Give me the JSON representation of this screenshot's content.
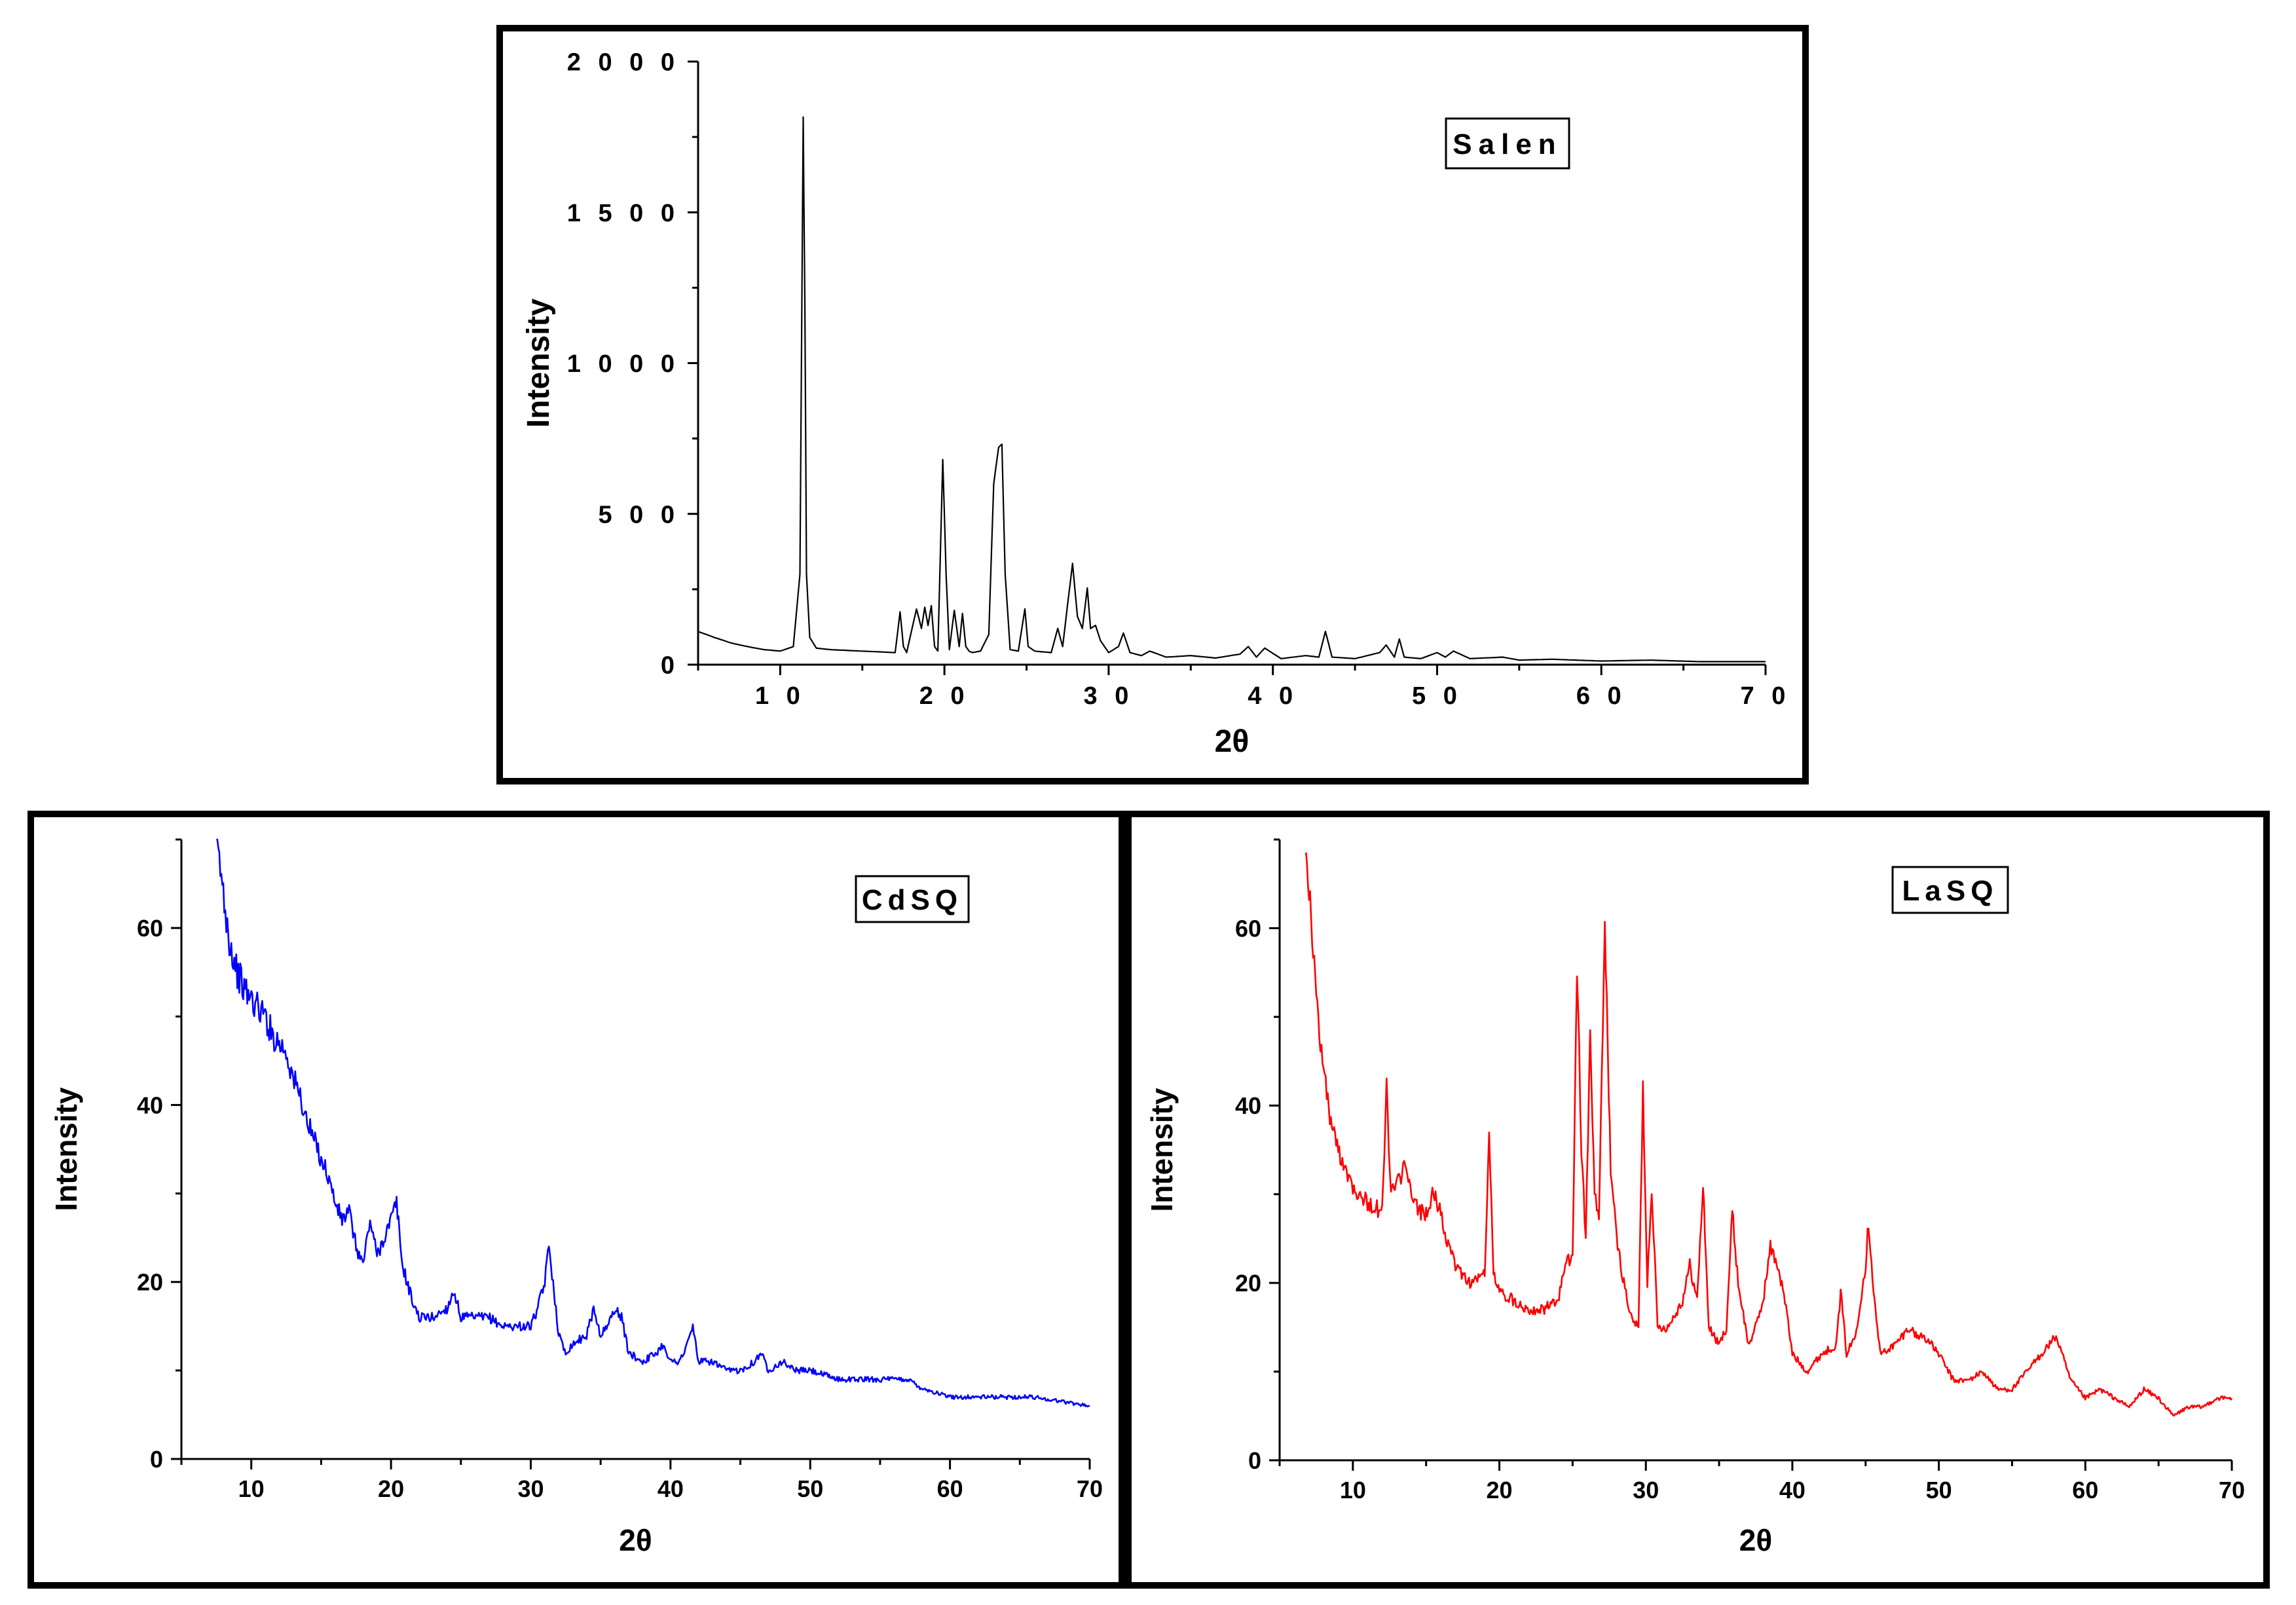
{
  "chart_data": [
    {
      "id": "salen",
      "type": "line",
      "title": "Salen",
      "legend": "Salen",
      "xlabel": "2θ",
      "ylabel": "Intensity",
      "xlim": [
        5,
        70
      ],
      "ylim": [
        0,
        2000
      ],
      "xticks": [
        10,
        20,
        30,
        40,
        50,
        60,
        70
      ],
      "yticks": [
        0,
        500,
        1000,
        1500,
        2000
      ],
      "xticklabels": [
        "1 0",
        "2 0",
        "3 0",
        "4 0",
        "5 0",
        "6 0",
        "7 0"
      ],
      "yticklabels": [
        "0",
        "5 0 0",
        "1 0 0 0",
        "1 5 0 0",
        "2 0 0 0"
      ],
      "color": "#000000",
      "series": [
        {
          "name": "Salen",
          "x": [
            5,
            6,
            7,
            8,
            9,
            10,
            10.8,
            11.2,
            11.4,
            11.5,
            11.6,
            11.8,
            12.2,
            13,
            15,
            17,
            17.3,
            17.5,
            17.7,
            18.3,
            18.6,
            18.8,
            19.0,
            19.2,
            19.4,
            19.6,
            19.9,
            20.1,
            20.3,
            20.6,
            20.9,
            21.1,
            21.3,
            21.5,
            21.7,
            22.2,
            22.7,
            23.0,
            23.3,
            23.5,
            23.7,
            24.0,
            24.5,
            24.9,
            25.1,
            25.5,
            26.5,
            26.9,
            27.2,
            27.5,
            27.8,
            28.1,
            28.4,
            28.7,
            28.9,
            29.2,
            29.5,
            30.0,
            30.6,
            30.9,
            31.3,
            32.0,
            32.5,
            33.5,
            35.0,
            36.5,
            38.0,
            38.5,
            39.0,
            39.5,
            40.5,
            42.0,
            42.8,
            43.2,
            43.6,
            45.0,
            46.5,
            46.9,
            47.4,
            47.7,
            48.0,
            49.0,
            50.0,
            50.5,
            51.0,
            52.0,
            54.0,
            55.0,
            57.0,
            60.0,
            63.0,
            66.0,
            70.0
          ],
          "y": [
            110,
            90,
            72,
            60,
            50,
            45,
            60,
            300,
            1820,
            1200,
            300,
            90,
            55,
            50,
            45,
            40,
            175,
            60,
            40,
            185,
            120,
            190,
            130,
            195,
            60,
            45,
            680,
            300,
            50,
            180,
            60,
            170,
            60,
            45,
            40,
            45,
            100,
            600,
            720,
            730,
            300,
            50,
            45,
            185,
            60,
            45,
            40,
            120,
            60,
            200,
            335,
            160,
            120,
            255,
            120,
            130,
            80,
            40,
            60,
            105,
            40,
            30,
            45,
            25,
            30,
            22,
            35,
            60,
            25,
            55,
            20,
            30,
            25,
            110,
            25,
            20,
            40,
            65,
            25,
            85,
            25,
            20,
            40,
            25,
            45,
            20,
            25,
            15,
            18,
            12,
            15,
            10,
            10
          ]
        }
      ]
    },
    {
      "id": "cdsq",
      "type": "line",
      "title": "CdSQ",
      "legend": "CdSQ",
      "xlabel": "2θ",
      "ylabel": "Intensity",
      "xlim": [
        5,
        70
      ],
      "ylim": [
        0,
        70
      ],
      "xticks": [
        10,
        20,
        30,
        40,
        50,
        60,
        70
      ],
      "yticks": [
        0,
        20,
        40,
        60
      ],
      "xticklabels": [
        "10",
        "20",
        "30",
        "40",
        "50",
        "60",
        "70"
      ],
      "yticklabels": [
        "0",
        "20",
        "40",
        "60"
      ],
      "color": "#0000ff",
      "series": [
        {
          "name": "CdSQ",
          "x": [
            7.5,
            8.5,
            9.0,
            9.5,
            10.0,
            10.5,
            11.0,
            11.5,
            12.0,
            12.5,
            13.0,
            13.5,
            14.0,
            14.5,
            15.0,
            15.5,
            16.0,
            16.5,
            17.0,
            17.5,
            18.0,
            18.5,
            19.0,
            19.5,
            20.0,
            20.4,
            20.8,
            21.5,
            22.0,
            23.0,
            24.0,
            24.5,
            25.0,
            26.0,
            27.0,
            28.0,
            29.0,
            30.0,
            30.5,
            31.0,
            31.3,
            31.6,
            32.0,
            32.5,
            33.0,
            34.0,
            34.5,
            35.0,
            35.5,
            36.0,
            36.5,
            37.0,
            38.0,
            39.0,
            39.5,
            40.0,
            40.5,
            41.0,
            41.6,
            42.0,
            43.0,
            44.0,
            45.0,
            46.0,
            46.5,
            47.0,
            48.0,
            49.0,
            50.0,
            52.0,
            54.0,
            56.0,
            57.0,
            58.0,
            60.0,
            62.0,
            64.0,
            66.0,
            68.0,
            70.0
          ],
          "y": [
            70,
            58,
            55,
            53,
            52,
            51,
            50,
            48,
            47,
            46,
            43,
            41,
            38,
            36,
            34,
            32,
            29,
            27,
            28,
            24,
            22,
            27,
            23,
            25,
            27,
            29,
            22,
            18,
            16,
            16,
            17,
            19,
            16,
            16,
            16,
            15,
            15,
            15,
            17,
            20,
            24,
            20,
            14,
            12,
            13,
            14,
            17,
            14,
            15,
            17,
            16,
            12,
            11,
            12,
            13,
            11,
            11,
            12,
            15,
            11,
            11,
            10,
            10,
            11,
            12,
            10,
            11,
            10,
            10,
            9,
            9,
            9,
            9,
            8,
            7,
            7,
            7,
            7,
            6.5,
            6
          ]
        }
      ]
    },
    {
      "id": "lasq",
      "type": "line",
      "title": "LaSQ",
      "legend": "LaSQ",
      "xlabel": "2θ",
      "ylabel": "Intensity",
      "xlim": [
        5,
        70
      ],
      "ylim": [
        0,
        70
      ],
      "xticks": [
        10,
        20,
        30,
        40,
        50,
        60,
        70
      ],
      "yticks": [
        0,
        20,
        40,
        60
      ],
      "xticklabels": [
        "10",
        "20",
        "30",
        "40",
        "50",
        "60",
        "70"
      ],
      "yticklabels": [
        "0",
        "20",
        "40",
        "60"
      ],
      "color": "#ff0000",
      "series": [
        {
          "name": "LaSQ",
          "x": [
            6.8,
            7.5,
            8.0,
            8.5,
            9.0,
            9.5,
            10.0,
            11.0,
            12.0,
            12.3,
            12.6,
            13.0,
            13.5,
            14.0,
            14.5,
            15.0,
            15.5,
            16.0,
            16.5,
            17.0,
            18.0,
            19.0,
            19.3,
            19.6,
            20.0,
            21.0,
            22.0,
            23.0,
            24.0,
            24.5,
            25.0,
            25.3,
            25.6,
            25.9,
            26.2,
            26.5,
            26.8,
            27.2,
            27.6,
            28.0,
            28.5,
            29.0,
            29.5,
            29.8,
            30.1,
            30.4,
            30.8,
            31.5,
            32.5,
            33.0,
            33.5,
            33.9,
            34.3,
            35.0,
            35.5,
            35.9,
            36.3,
            37.0,
            37.5,
            38.0,
            38.5,
            39.0,
            39.5,
            40.0,
            41.0,
            42.0,
            43.0,
            43.3,
            43.7,
            44.3,
            45.0,
            45.2,
            45.6,
            46.0,
            47.0,
            48.0,
            48.5,
            49.0,
            50.0,
            51.0,
            52.0,
            53.0,
            54.0,
            55.0,
            56.0,
            57.0,
            58.0,
            59.0,
            60.0,
            61.0,
            62.0,
            63.0,
            64.0,
            65.0,
            66.0,
            67.0,
            68.0,
            69.0,
            70.0
          ],
          "y": [
            70,
            52,
            44,
            38,
            35,
            33,
            31,
            29,
            28,
            42,
            30,
            31,
            33,
            30,
            28,
            28,
            30,
            28,
            24,
            22,
            20,
            21,
            37,
            21,
            19,
            18,
            17,
            17,
            18,
            22,
            23,
            56,
            35,
            25,
            48,
            30,
            27,
            60,
            33,
            25,
            20,
            16,
            15,
            42,
            20,
            31,
            15,
            15,
            18,
            22,
            18,
            31,
            15,
            13,
            15,
            28,
            20,
            13,
            15,
            18,
            24,
            22,
            18,
            12,
            10,
            12,
            13,
            19,
            12,
            14,
            22,
            27,
            18,
            12,
            13,
            15,
            14,
            14,
            12,
            9,
            9,
            10,
            8,
            8,
            10,
            12,
            14,
            9,
            7,
            8,
            7,
            6,
            8,
            7,
            5,
            6,
            6,
            7,
            7
          ]
        }
      ]
    }
  ]
}
